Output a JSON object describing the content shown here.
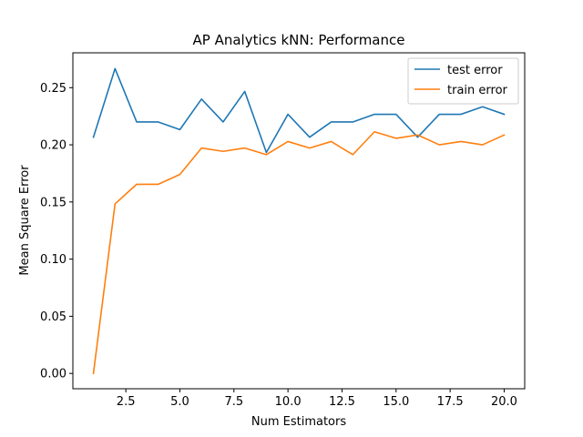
{
  "chart_data": {
    "type": "line",
    "title": "AP Analytics kNN: Performance",
    "xlabel": "Num Estimators",
    "ylabel": "Mean Square Error",
    "xlim": [
      0.05,
      20.95
    ],
    "ylim": [
      -0.0134,
      0.2805
    ],
    "xticks": [
      2.5,
      5.0,
      7.5,
      10.0,
      12.5,
      15.0,
      17.5,
      20.0
    ],
    "xtick_labels": [
      "2.5",
      "5.0",
      "7.5",
      "10.0",
      "12.5",
      "15.0",
      "17.5",
      "20.0"
    ],
    "yticks": [
      0.0,
      0.05,
      0.1,
      0.15,
      0.2,
      0.25
    ],
    "ytick_labels": [
      "0.00",
      "0.05",
      "0.10",
      "0.15",
      "0.20",
      "0.25"
    ],
    "grid": false,
    "legend_position": "top-right",
    "x": [
      1,
      2,
      3,
      4,
      5,
      6,
      7,
      8,
      9,
      10,
      11,
      12,
      13,
      14,
      15,
      16,
      17,
      18,
      19,
      20
    ],
    "series": [
      {
        "name": "test error",
        "color": "#1f77b4",
        "values": [
          0.2066,
          0.2667,
          0.22,
          0.22,
          0.2133,
          0.24,
          0.22,
          0.2467,
          0.1933,
          0.2267,
          0.2067,
          0.22,
          0.22,
          0.2267,
          0.2267,
          0.2067,
          0.2267,
          0.2267,
          0.2333,
          0.2267
        ]
      },
      {
        "name": "train error",
        "color": "#ff7f0e",
        "values": [
          0.0,
          0.1483,
          0.1655,
          0.1655,
          0.1741,
          0.1972,
          0.1943,
          0.1972,
          0.1914,
          0.2029,
          0.1972,
          0.2029,
          0.1914,
          0.2114,
          0.2057,
          0.2086,
          0.2,
          0.2029,
          0.2,
          0.2086
        ]
      }
    ]
  }
}
